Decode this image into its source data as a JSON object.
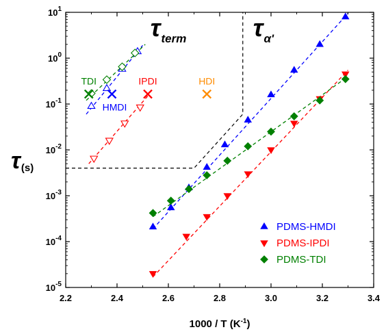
{
  "chart_data": {
    "type": "scatter",
    "xlabel": "1000 / T (K",
    "xlabel_sup": "-1",
    "xlabel_end": ")",
    "ylabel_main": "τ",
    "ylabel_sub": "(s)",
    "xlim": [
      2.2,
      3.4
    ],
    "ylim": [
      1e-05,
      10
    ],
    "yscale": "log",
    "x_ticks": [
      "2.2",
      "2.4",
      "2.6",
      "2.8",
      "3.0",
      "3.2",
      "3.4"
    ],
    "x_tick_values": [
      2.2,
      2.4,
      2.6,
      2.8,
      3.0,
      3.2,
      3.4
    ],
    "y_ticks": [
      {
        "value": 1e-05,
        "base": "10",
        "exp": "-5"
      },
      {
        "value": 0.0001,
        "base": "10",
        "exp": "-4"
      },
      {
        "value": 0.001,
        "base": "10",
        "exp": "-3"
      },
      {
        "value": 0.01,
        "base": "10",
        "exp": "-2"
      },
      {
        "value": 0.1,
        "base": "10",
        "exp": "-1"
      },
      {
        "value": 1,
        "base": "10",
        "exp": "0"
      },
      {
        "value": 10,
        "base": "10",
        "exp": "1"
      }
    ],
    "grid": false,
    "legend_position": "bottom-right",
    "series": [
      {
        "name": "PDMS-HMDI",
        "color": "#0000ff",
        "marker": "triangle-up",
        "x": [
          2.54,
          2.61,
          2.68,
          2.75,
          2.82,
          2.91,
          3.0,
          3.09,
          3.19,
          3.29
        ],
        "y": [
          0.00021,
          0.00055,
          0.0015,
          0.0042,
          0.013,
          0.045,
          0.16,
          0.55,
          2.0,
          8.0
        ],
        "fit": {
          "x": [
            2.54,
            3.3
          ],
          "y": [
            0.00019,
            9.5
          ]
        }
      },
      {
        "name": "PDMS-IPDI",
        "color": "#ff0000",
        "marker": "triangle-down",
        "x": [
          2.54,
          2.67,
          2.75,
          2.83,
          2.91,
          3.0,
          3.09,
          3.19,
          3.29
        ],
        "y": [
          2e-05,
          0.00013,
          0.00035,
          0.001,
          0.003,
          0.01,
          0.038,
          0.13,
          0.45
        ],
        "fit": {
          "x": [
            2.54,
            3.3
          ],
          "y": [
            1.7e-05,
            0.55
          ]
        }
      },
      {
        "name": "PDMS-TDI",
        "color": "#008000",
        "marker": "diamond",
        "x": [
          2.54,
          2.61,
          2.68,
          2.75,
          2.83,
          2.91,
          3.0,
          3.09,
          3.19,
          3.29
        ],
        "y": [
          0.00042,
          0.00078,
          0.0014,
          0.0028,
          0.0058,
          0.012,
          0.025,
          0.054,
          0.12,
          0.35
        ],
        "fit": {
          "x": [
            2.54,
            3.3
          ],
          "y": [
            0.00035,
            0.4
          ]
        }
      }
    ],
    "open_series": [
      {
        "group": "HMDI",
        "color": "#0000ff",
        "marker": "triangle-up",
        "x": [
          2.3,
          2.36,
          2.42,
          2.48
        ],
        "y": [
          0.09,
          0.22,
          0.58,
          1.4
        ],
        "fit": {
          "x": [
            2.28,
            2.5
          ],
          "y": [
            0.06,
            1.9
          ]
        }
      },
      {
        "group": "IPDI",
        "color": "#ff0000",
        "marker": "triangle-down",
        "x": [
          2.31,
          2.37,
          2.43,
          2.49
        ],
        "y": [
          0.0065,
          0.016,
          0.038,
          0.085
        ],
        "fit": {
          "x": [
            2.29,
            2.52
          ],
          "y": [
            0.005,
            0.15
          ]
        }
      },
      {
        "group": "TDI",
        "color": "#008000",
        "marker": "diamond",
        "x": [
          2.3,
          2.36,
          2.42,
          2.47
        ],
        "y": [
          0.17,
          0.34,
          0.65,
          1.3
        ],
        "fit": {
          "x": [
            2.28,
            2.51
          ],
          "y": [
            0.12,
            2.0
          ]
        }
      }
    ],
    "cross_markers": [
      {
        "label": "TDI",
        "color": "#008000",
        "x": 2.29,
        "y": 0.165
      },
      {
        "label": "HMDI",
        "color": "#0000ff",
        "x": 2.38,
        "y": 0.165
      },
      {
        "label": "IPDI",
        "color": "#ff0000",
        "x": 2.52,
        "y": 0.165
      },
      {
        "label": "HDI",
        "color": "#ff8c00",
        "x": 2.75,
        "y": 0.165
      }
    ],
    "annotations": {
      "term": {
        "main": "τ",
        "sub": "term"
      },
      "alpha": {
        "main": "τ",
        "sub": "α'"
      }
    },
    "regime_boundary": {
      "x": [
        2.2,
        2.7,
        2.89,
        2.89
      ],
      "y": [
        0.004,
        0.004,
        0.06,
        10
      ]
    }
  }
}
